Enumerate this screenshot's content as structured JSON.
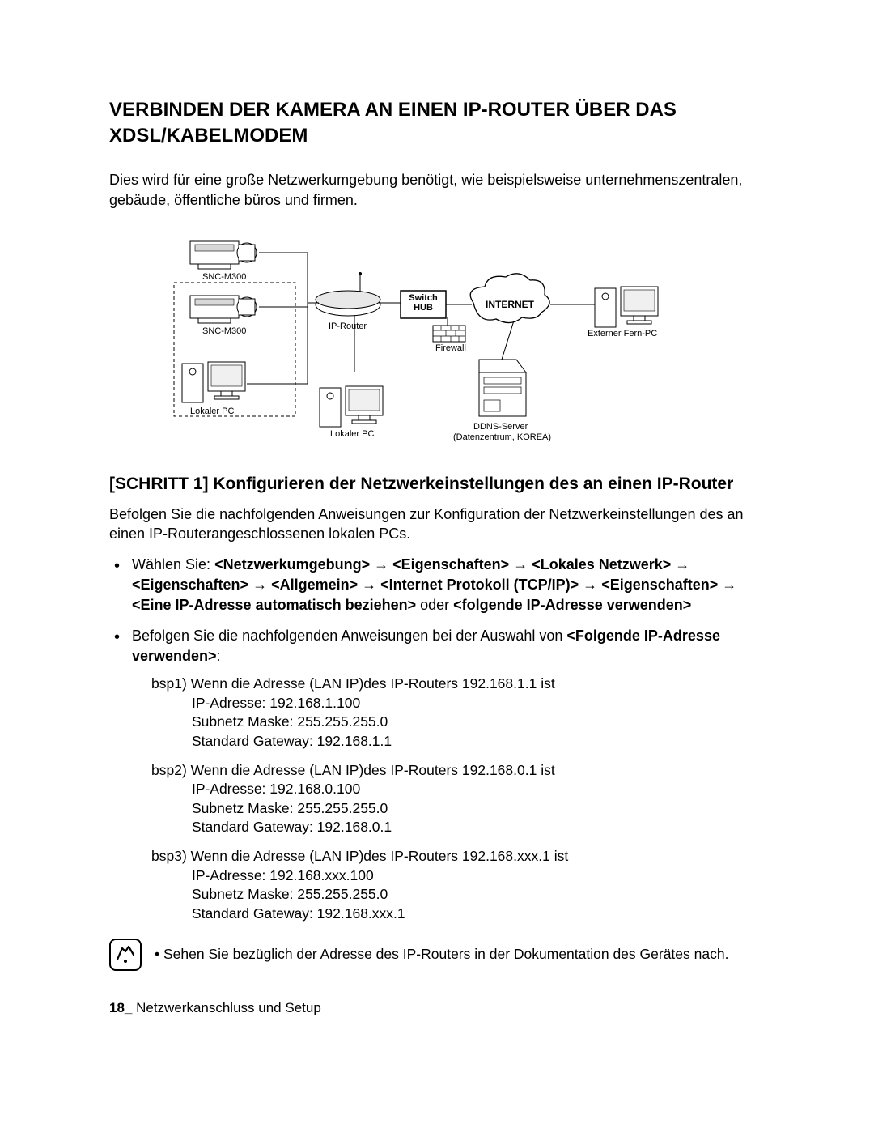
{
  "title_line1": "VERBINDEN DER KAMERA AN EINEN IP-ROUTER ÜBER DAS",
  "title_line2": "XDSL/KABELMODEM",
  "intro": "Dies wird für eine große Netzwerkumgebung benötigt, wie beispielsweise unternehmenszentralen, gebäude, öffentliche büros und firmen.",
  "diagram_labels": {
    "camera1": "SNC-M300",
    "camera2": "SNC-M300",
    "switch_hub": "Switch HUB",
    "ip_router": "IP-Router",
    "internet": "INTERNET",
    "firewall": "Firewall",
    "local_pc1": "Lokaler PC",
    "local_pc2": "Lokaler PC",
    "ddns1": "DDNS-Server",
    "ddns2": "(Datenzentrum, KOREA)",
    "extern_pc": "Externer Fern-PC"
  },
  "step_heading": "[SCHRITT 1] Konfigurieren der Netzwerkeinstellungen des an einen IP-Router",
  "follow_text": "Befolgen Sie die nachfolgenden Anweisungen zur Konfiguration der Netzwerkeinstellungen des an einen IP-Routerangeschlossenen lokalen PCs.",
  "bullet1": {
    "prefix": "Wählen Sie: ",
    "parts": [
      {
        "t": "<Netzwerkumgebung>",
        "b": true
      },
      {
        "t": " → "
      },
      {
        "t": "<Eigenschaften>",
        "b": true
      },
      {
        "t": " → "
      },
      {
        "t": "<Lokales Netzwerk>",
        "b": true
      },
      {
        "t": " → "
      },
      {
        "t": "<Eigenschaften>",
        "b": true
      },
      {
        "t": " → "
      },
      {
        "t": "<Allgemein>",
        "b": true
      },
      {
        "t": " → "
      },
      {
        "t": "<Internet Protokoll (TCP/IP)>",
        "b": true
      },
      {
        "t": " → "
      },
      {
        "t": "<Eigenschaften>",
        "b": true
      },
      {
        "t": " → "
      },
      {
        "t": "<Eine IP-Adresse automatisch beziehen>",
        "b": true
      },
      {
        "t": " oder "
      },
      {
        "t": "<folgende IP-Adresse verwenden>",
        "b": true
      }
    ]
  },
  "bullet2_intro_a": "Befolgen Sie die nachfolgenden Anweisungen bei der Auswahl von ",
  "bullet2_intro_b": "<Folgende IP-Adresse verwenden>",
  "bullet2_intro_c": ":",
  "examples": [
    {
      "head": "bsp1) Wenn die Adresse (LAN IP)des IP-Routers 192.168.1.1 ist",
      "lines": [
        "IP-Adresse: 192.168.1.100",
        "Subnetz Maske: 255.255.255.0",
        "Standard Gateway: 192.168.1.1"
      ]
    },
    {
      "head": "bsp2) Wenn die Adresse (LAN IP)des IP-Routers 192.168.0.1 ist",
      "lines": [
        "IP-Adresse: 192.168.0.100",
        "Subnetz Maske: 255.255.255.0",
        "Standard Gateway: 192.168.0.1"
      ]
    },
    {
      "head": "bsp3) Wenn die Adresse (LAN IP)des IP-Routers 192.168.xxx.1 ist",
      "lines": [
        "IP-Adresse: 192.168.xxx.100",
        "Subnetz Maske: 255.255.255.0",
        "Standard Gateway: 192.168.xxx.1"
      ]
    }
  ],
  "note": "Sehen Sie bezüglich der Adresse des IP-Routers in der Dokumentation des Gerätes nach.",
  "footer_page": "18_",
  "footer_text": " Netzwerkanschluss und Setup"
}
